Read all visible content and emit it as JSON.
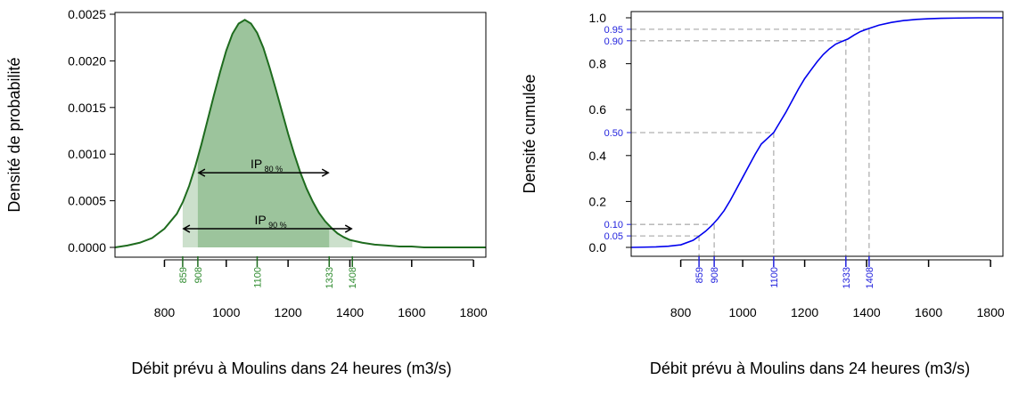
{
  "chart_data": [
    {
      "type": "area",
      "xlabel": "Débit prévu à Moulins dans 24 heures (m3/s)",
      "ylabel": "Densité de probabilité",
      "xlim": [
        640,
        1840
      ],
      "ylim": [
        0,
        0.0025
      ],
      "x_ticks": [
        800,
        1000,
        1200,
        1400,
        1600,
        1800
      ],
      "y_ticks": [
        "0.0000",
        "0.0005",
        "0.0010",
        "0.0015",
        "0.0020",
        "0.0025"
      ],
      "quantile_ticks": [
        "859",
        "908",
        "1100",
        "1333",
        "1408"
      ],
      "series": [
        {
          "x": [
            640,
            680,
            720,
            760,
            800,
            840,
            860,
            880,
            900,
            920,
            940,
            960,
            980,
            1000,
            1020,
            1040,
            1060,
            1080,
            1100,
            1120,
            1140,
            1160,
            1180,
            1200,
            1220,
            1240,
            1260,
            1280,
            1300,
            1320,
            1340,
            1360,
            1380,
            1400,
            1440,
            1480,
            1520,
            1560,
            1600,
            1640,
            1700,
            1760,
            1840
          ],
          "y": [
            0.0,
            2e-05,
            5e-05,
            0.0001,
            0.0002,
            0.00036,
            0.00049,
            0.00066,
            0.00087,
            0.00111,
            0.00137,
            0.00163,
            0.00188,
            0.00211,
            0.00229,
            0.0024,
            0.00244,
            0.0024,
            0.0023,
            0.00214,
            0.00193,
            0.0017,
            0.00146,
            0.00122,
            0.001,
            0.0008,
            0.00063,
            0.00049,
            0.00037,
            0.00028,
            0.00021,
            0.00015,
            0.00011,
            8e-05,
            5e-05,
            3e-05,
            2e-05,
            1e-05,
            1e-05,
            0.0,
            0.0,
            0.0,
            0.0
          ]
        }
      ],
      "intervals": [
        {
          "label_main": "IP",
          "label_sub": "90 %",
          "from": 859,
          "to": 1408,
          "arrow_y": 0.0002
        },
        {
          "label_main": "IP",
          "label_sub": "80 %",
          "from": 908,
          "to": 1333,
          "arrow_y": 0.0008
        }
      ],
      "colors": {
        "curve": "#1e6b1e",
        "inner_fill": "#9cc49c",
        "outer_fill": "#cce0cc",
        "quantile_text": "#2e8b2e"
      }
    },
    {
      "type": "line",
      "xlabel": "Débit prévu à Moulins dans 24 heures (m3/s)",
      "ylabel": "Densité cumulée",
      "xlim": [
        640,
        1840
      ],
      "ylim": [
        0,
        1
      ],
      "x_ticks": [
        800,
        1000,
        1200,
        1400,
        1600,
        1800
      ],
      "y_ticks": [
        "0.0",
        "0.2",
        "0.4",
        "0.6",
        "0.8",
        "1.0"
      ],
      "quantile_ticks": [
        "859",
        "908",
        "1100",
        "1333",
        "1408"
      ],
      "prob_levels": [
        {
          "p": "0.05",
          "value": 859
        },
        {
          "p": "0.10",
          "value": 908
        },
        {
          "p": "0.50",
          "value": 1100
        },
        {
          "p": "0.90",
          "value": 1333
        },
        {
          "p": "0.95",
          "value": 1408
        }
      ],
      "series": [
        {
          "x": [
            640,
            680,
            720,
            760,
            800,
            840,
            860,
            880,
            900,
            920,
            940,
            960,
            980,
            1000,
            1020,
            1040,
            1060,
            1080,
            1100,
            1120,
            1140,
            1160,
            1180,
            1200,
            1220,
            1240,
            1260,
            1280,
            1300,
            1320,
            1340,
            1360,
            1380,
            1400,
            1440,
            1480,
            1520,
            1560,
            1600,
            1640,
            1700,
            1760,
            1840
          ],
          "y": [
            0.0,
            0.001,
            0.002,
            0.005,
            0.011,
            0.031,
            0.05,
            0.07,
            0.095,
            0.125,
            0.16,
            0.205,
            0.255,
            0.305,
            0.355,
            0.405,
            0.45,
            0.475,
            0.5,
            0.545,
            0.59,
            0.64,
            0.69,
            0.735,
            0.772,
            0.808,
            0.84,
            0.865,
            0.885,
            0.897,
            0.908,
            0.925,
            0.94,
            0.95,
            0.968,
            0.98,
            0.988,
            0.993,
            0.996,
            0.998,
            0.999,
            1.0,
            1.0
          ]
        }
      ],
      "colors": {
        "curve": "#0000ee",
        "guide": "#b0b0b0",
        "label": "#2222dd"
      }
    }
  ]
}
